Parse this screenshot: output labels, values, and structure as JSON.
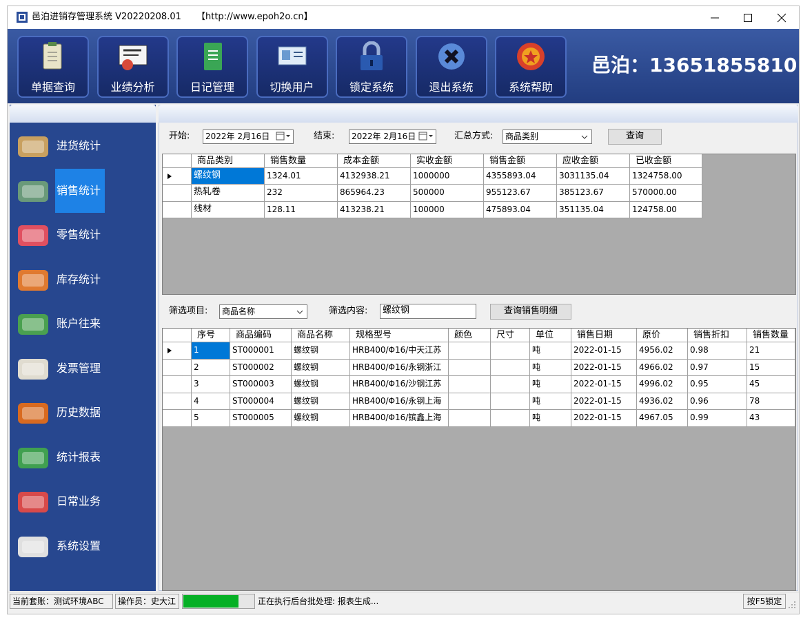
{
  "window": {
    "title": "邑泊进销存管理系统 V20220208.01",
    "url": "【http://www.epoh2o.cn】"
  },
  "toolbar": {
    "buttons": [
      "单据查询",
      "业绩分析",
      "日记管理",
      "切换用户",
      "锁定系统",
      "退出系统",
      "系统帮助"
    ],
    "contact": "邑泊：13651855810"
  },
  "sidebar": {
    "items": [
      {
        "label": "进货统计",
        "selected": false
      },
      {
        "label": "销售统计",
        "selected": true
      },
      {
        "label": "零售统计",
        "selected": false
      },
      {
        "label": "库存统计",
        "selected": false
      },
      {
        "label": "账户往来",
        "selected": false
      },
      {
        "label": "发票管理",
        "selected": false
      },
      {
        "label": "历史数据",
        "selected": false
      },
      {
        "label": "统计报表",
        "selected": false
      },
      {
        "label": "日常业务",
        "selected": false
      },
      {
        "label": "系统设置",
        "selected": false
      }
    ]
  },
  "query": {
    "start_label": "开始:",
    "start_date": "2022年 2月16日",
    "end_label": "结束:",
    "end_date": "2022年 2月16日",
    "mode_label": "汇总方式:",
    "mode": "商品类别",
    "button": "查询"
  },
  "summary_table": {
    "columns": [
      "商品类别",
      "销售数量",
      "成本金额",
      "实收金额",
      "销售金额",
      "应收金额",
      "已收金额"
    ],
    "rows": [
      [
        "螺纹钢",
        "1324.01",
        "4132938.21",
        "1000000",
        "4355893.04",
        "3031135.04",
        "1324758.00"
      ],
      [
        "热轧卷",
        "232",
        "865964.23",
        "500000",
        "955123.67",
        "385123.67",
        "570000.00"
      ],
      [
        "线材",
        "128.11",
        "413238.21",
        "100000",
        "475893.04",
        "351135.04",
        "124758.00"
      ]
    ]
  },
  "filter": {
    "item_label": "筛选项目:",
    "item": "商品名称",
    "content_label": "筛选内容:",
    "content": "螺纹钢",
    "button": "查询销售明细"
  },
  "detail_table": {
    "columns": [
      "序号",
      "商品编码",
      "商品名称",
      "规格型号",
      "颜色",
      "尺寸",
      "单位",
      "销售日期",
      "原价",
      "销售折扣",
      "销售数量"
    ],
    "rows": [
      [
        "1",
        "ST000001",
        "螺纹钢",
        "HRB400/Φ16/中天江苏",
        "",
        "",
        "吨",
        "2022-01-15",
        "4956.02",
        "0.98",
        "21"
      ],
      [
        "2",
        "ST000002",
        "螺纹钢",
        "HRB400/Φ16/永钢浙江",
        "",
        "",
        "吨",
        "2022-01-15",
        "4966.02",
        "0.97",
        "15"
      ],
      [
        "3",
        "ST000003",
        "螺纹钢",
        "HRB400/Φ16/沙钢江苏",
        "",
        "",
        "吨",
        "2022-01-15",
        "4996.02",
        "0.95",
        "45"
      ],
      [
        "4",
        "ST000004",
        "螺纹钢",
        "HRB400/Φ16/永钢上海",
        "",
        "",
        "吨",
        "2022-01-15",
        "4936.02",
        "0.96",
        "78"
      ],
      [
        "5",
        "ST000005",
        "螺纹钢",
        "HRB400/Φ16/镔鑫上海",
        "",
        "",
        "吨",
        "2022-01-15",
        "4967.05",
        "0.99",
        "43"
      ]
    ]
  },
  "status_bar": {
    "account": "当前套账：测试环境ABC",
    "operator": "操作员：史大江",
    "message": "正在执行后台批处理: 报表生成...",
    "lock": "按F5锁定"
  }
}
